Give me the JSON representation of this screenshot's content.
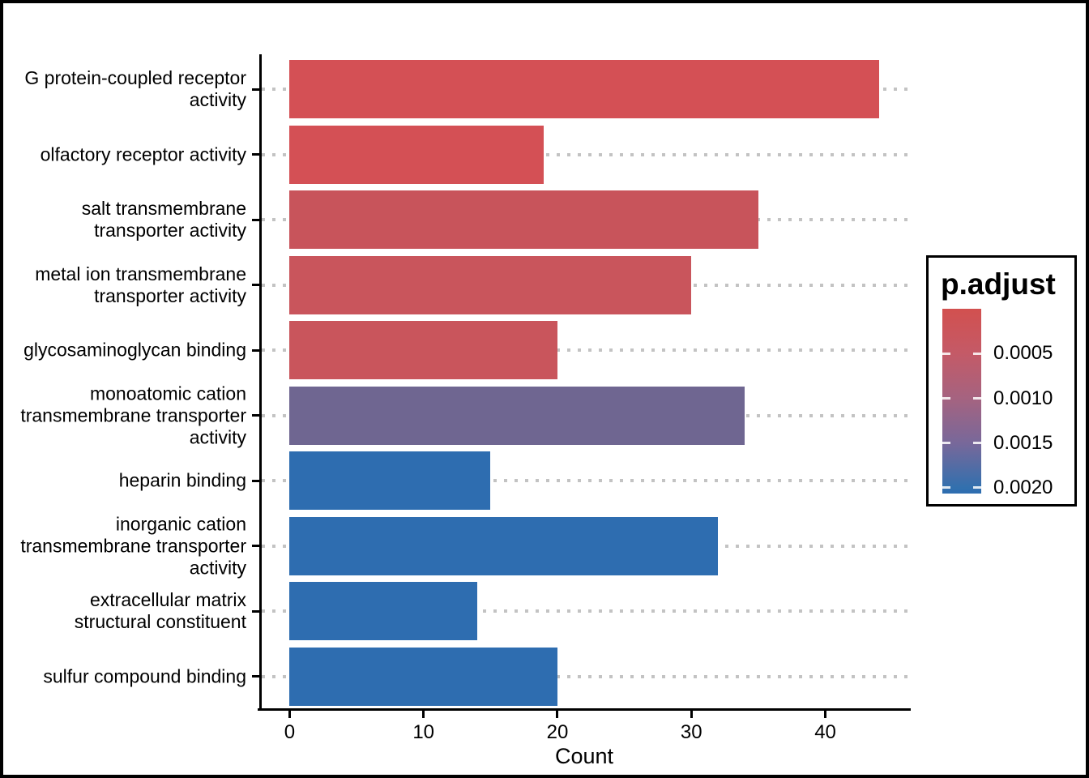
{
  "figure": {
    "background": "#ffffff",
    "frame_color": "#000000",
    "axis_color": "#000000",
    "gridline_color": "#c3c3c3"
  },
  "chart_data": {
    "type": "bar",
    "orientation": "horizontal",
    "title": "",
    "xlabel": "Count",
    "ylabel": "",
    "grid": "dotted horizontal lines",
    "x_ticks": [
      0,
      10,
      20,
      30,
      40
    ],
    "xlim": [
      0,
      46
    ],
    "categories": [
      "G protein-coupled receptor\nactivity",
      "olfactory receptor activity",
      "salt transmembrane\ntransporter activity",
      "metal ion transmembrane\ntransporter activity",
      "glycosaminoglycan binding",
      "monoatomic cation\ntransmembrane transporter\nactivity",
      "heparin binding",
      "inorganic cation\ntransmembrane transporter\nactivity",
      "extracellular matrix\nstructural constituent",
      "sulfur compound binding"
    ],
    "values": [
      44,
      19,
      35,
      30,
      20,
      34,
      15,
      32,
      14,
      20
    ],
    "bar_colors": [
      "#D45055",
      "#D45055",
      "#C8545B",
      "#C9555C",
      "#C9555C",
      "#6F6691",
      "#2E6DB0",
      "#2E6DB0",
      "#2E6DB0",
      "#2E6DB0"
    ],
    "legend": {
      "title": "p.adjust",
      "position": "right",
      "tick_labels": [
        "0.0005",
        "0.0010",
        "0.0015",
        "0.0020"
      ],
      "gradient_stops": [
        "#D2504F",
        "#C45A67",
        "#A56380",
        "#78689A",
        "#3270AE",
        "#2E6DB0"
      ]
    }
  }
}
